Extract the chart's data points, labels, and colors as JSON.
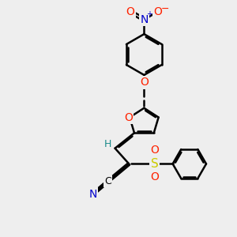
{
  "bg_color": "#eeeeee",
  "bond_color": "#000000",
  "bond_width": 1.8,
  "dbo": 0.07,
  "fs": 9,
  "atom_colors": {
    "O": "#ff2200",
    "N": "#0000cc",
    "S": "#cccc00",
    "C": "#1a8a8a",
    "black": "#000000"
  }
}
